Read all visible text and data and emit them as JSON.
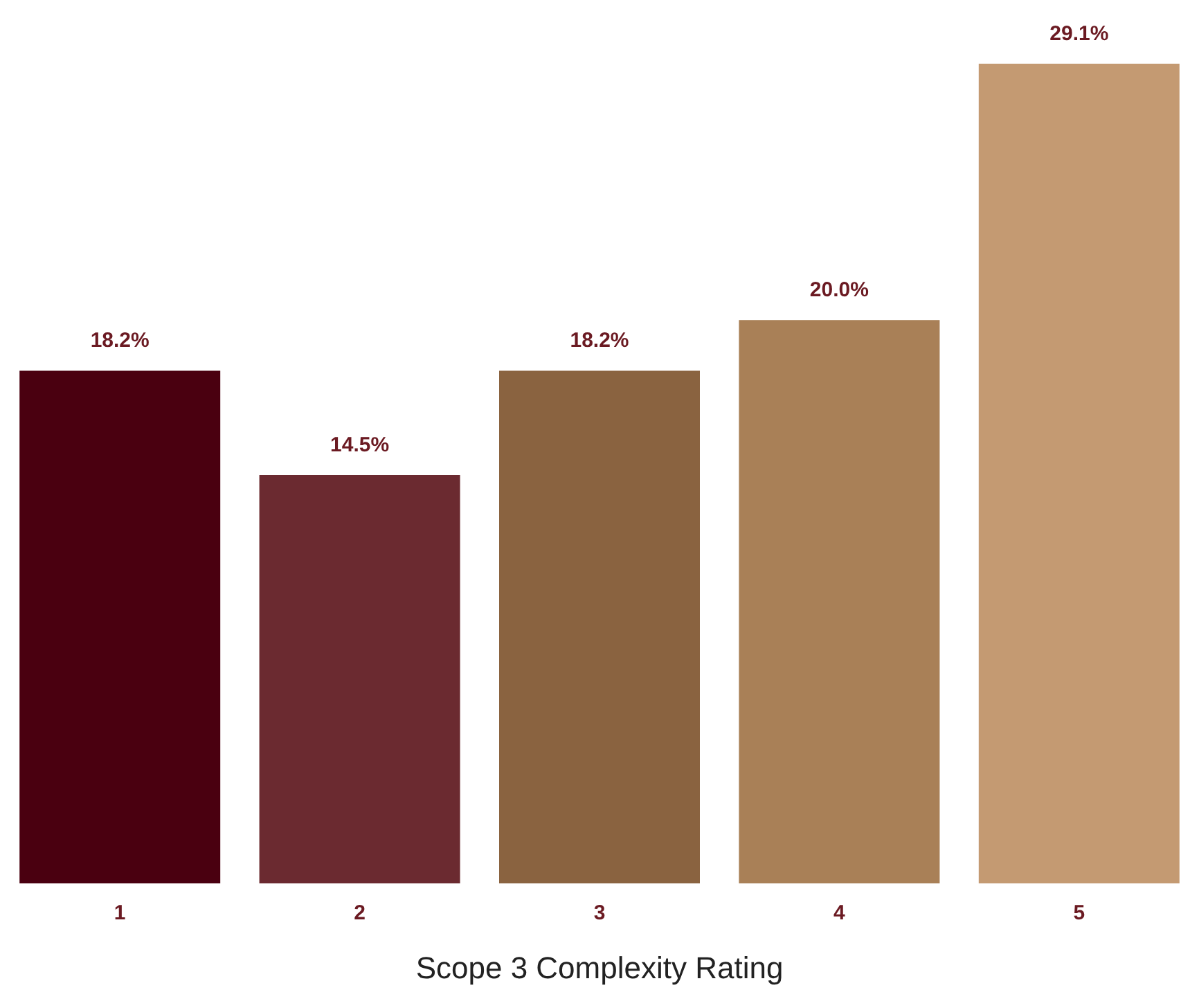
{
  "chart_data": {
    "type": "bar",
    "xlabel": "Scope 3 Complexity Rating",
    "categories": [
      "1",
      "2",
      "3",
      "4",
      "5"
    ],
    "values": [
      18.2,
      14.5,
      18.2,
      20.0,
      29.1
    ],
    "colors": [
      "#4a0010",
      "#6b2a30",
      "#8a6340",
      "#a98057",
      "#c49a72"
    ],
    "value_labels": [
      "18.2%",
      "14.5%",
      "18.2%",
      "20.0%",
      "29.1%"
    ]
  }
}
